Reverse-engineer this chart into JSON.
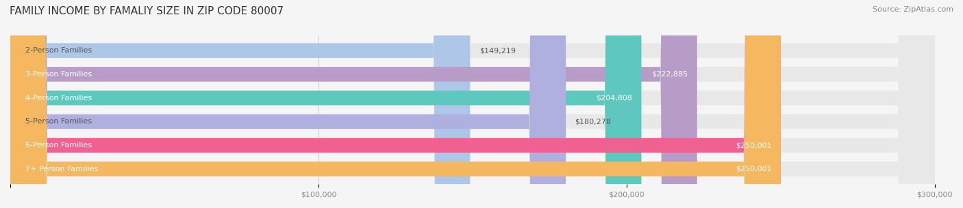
{
  "title": "FAMILY INCOME BY FAMALIY SIZE IN ZIP CODE 80007",
  "source": "Source: ZipAtlas.com",
  "categories": [
    "2-Person Families",
    "3-Person Families",
    "4-Person Families",
    "5-Person Families",
    "6-Person Families",
    "7+ Person Families"
  ],
  "values": [
    149219,
    222885,
    204808,
    180278,
    250001,
    250001
  ],
  "bar_colors": [
    "#aec6e8",
    "#b89cc8",
    "#5ec8be",
    "#b0b0e0",
    "#f06090",
    "#f5b860"
  ],
  "value_labels": [
    "$149,219",
    "$222,885",
    "$204,808",
    "$180,278",
    "$250,001",
    "$250,001"
  ],
  "label_inside": [
    false,
    true,
    true,
    false,
    true,
    true
  ],
  "xlim": [
    0,
    300000
  ],
  "xticks": [
    0,
    100000,
    200000,
    300000
  ],
  "xticklabels": [
    "",
    "$100,000",
    "$200,000",
    "$300,000"
  ],
  "background_color": "#f5f5f5",
  "bar_background_color": "#e8e8e8",
  "bar_height": 0.62,
  "title_fontsize": 11,
  "source_fontsize": 8,
  "label_fontsize": 8,
  "tick_fontsize": 8
}
